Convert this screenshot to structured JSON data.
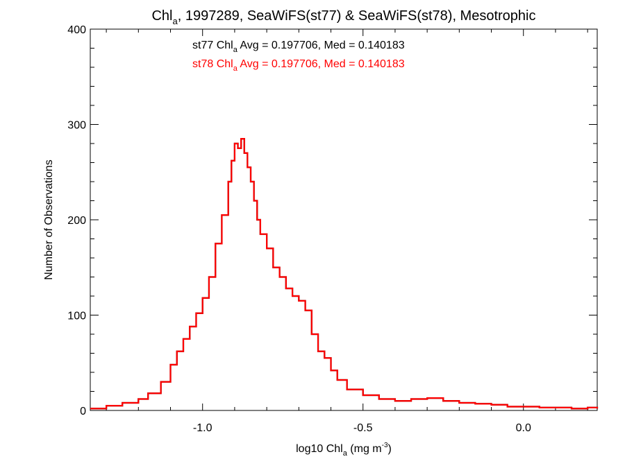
{
  "title": {
    "prefix": "Chl",
    "sub": "a",
    "rest": ", 1997289, SeaWiFS(st77) & SeaWiFS(st78), Mesotrophic"
  },
  "xlabel": {
    "prefix": "log10 Chl",
    "sub": "a",
    "mid": " (mg m",
    "sup": "-3",
    "suffix": ")"
  },
  "ylabel": "Number of Observations",
  "annotations": [
    {
      "series": "st77",
      "prefix": "st77 Chl",
      "sub": "a",
      "rest": " Avg = 0.197706, Med = 0.140183",
      "color": "#000000"
    },
    {
      "series": "st78",
      "prefix": "st78 Chl",
      "sub": "a",
      "rest": " Avg = 0.197706, Med = 0.140183",
      "color": "#ff0000"
    }
  ],
  "colors": {
    "st77": "#000000",
    "st78": "#ff0000",
    "axes": "#000000"
  },
  "chart_data": {
    "type": "line",
    "style": "step histogram",
    "xlim": [
      -1.35,
      0.23
    ],
    "ylim": [
      0,
      400
    ],
    "xticks": [
      -1.0,
      -0.5,
      0.0
    ],
    "xtick_labels": [
      "-1.0",
      "-0.5",
      "0.0"
    ],
    "yticks": [
      0,
      100,
      200,
      300,
      400
    ],
    "ytick_labels": [
      "0",
      "100",
      "200",
      "300",
      "400"
    ],
    "grid": false,
    "series": [
      {
        "name": "st77",
        "color": "#000000",
        "x": [
          -1.35,
          -1.3,
          -1.25,
          -1.2,
          -1.17,
          -1.13,
          -1.1,
          -1.08,
          -1.06,
          -1.04,
          -1.02,
          -1.0,
          -0.98,
          -0.96,
          -0.94,
          -0.92,
          -0.91,
          -0.9,
          -0.89,
          -0.88,
          -0.87,
          -0.86,
          -0.85,
          -0.84,
          -0.83,
          -0.82,
          -0.8,
          -0.78,
          -0.76,
          -0.74,
          -0.72,
          -0.7,
          -0.68,
          -0.66,
          -0.64,
          -0.62,
          -0.6,
          -0.58,
          -0.55,
          -0.5,
          -0.45,
          -0.4,
          -0.35,
          -0.3,
          -0.25,
          -0.2,
          -0.15,
          -0.1,
          -0.05,
          0.0,
          0.05,
          0.1,
          0.15,
          0.2,
          0.23
        ],
        "y": [
          2,
          5,
          8,
          12,
          18,
          30,
          48,
          62,
          75,
          88,
          102,
          118,
          140,
          175,
          205,
          240,
          262,
          280,
          275,
          285,
          270,
          255,
          240,
          220,
          200,
          185,
          170,
          150,
          140,
          128,
          120,
          115,
          105,
          80,
          62,
          55,
          42,
          32,
          22,
          16,
          12,
          10,
          12,
          13,
          10,
          8,
          7,
          6,
          4,
          4,
          3,
          3,
          2,
          3,
          2
        ]
      },
      {
        "name": "st78",
        "color": "#ff0000",
        "x": [
          -1.35,
          -1.3,
          -1.25,
          -1.2,
          -1.17,
          -1.13,
          -1.1,
          -1.08,
          -1.06,
          -1.04,
          -1.02,
          -1.0,
          -0.98,
          -0.96,
          -0.94,
          -0.92,
          -0.91,
          -0.9,
          -0.89,
          -0.88,
          -0.87,
          -0.86,
          -0.85,
          -0.84,
          -0.83,
          -0.82,
          -0.8,
          -0.78,
          -0.76,
          -0.74,
          -0.72,
          -0.7,
          -0.68,
          -0.66,
          -0.64,
          -0.62,
          -0.6,
          -0.58,
          -0.55,
          -0.5,
          -0.45,
          -0.4,
          -0.35,
          -0.3,
          -0.25,
          -0.2,
          -0.15,
          -0.1,
          -0.05,
          0.0,
          0.05,
          0.1,
          0.15,
          0.2,
          0.23
        ],
        "y": [
          2,
          5,
          8,
          12,
          18,
          30,
          48,
          62,
          75,
          88,
          102,
          118,
          140,
          175,
          205,
          240,
          262,
          280,
          275,
          285,
          270,
          255,
          240,
          220,
          200,
          185,
          170,
          150,
          140,
          128,
          120,
          115,
          105,
          80,
          62,
          55,
          42,
          32,
          22,
          16,
          12,
          10,
          12,
          13,
          10,
          8,
          7,
          6,
          4,
          4,
          3,
          3,
          2,
          3,
          2
        ]
      }
    ]
  }
}
